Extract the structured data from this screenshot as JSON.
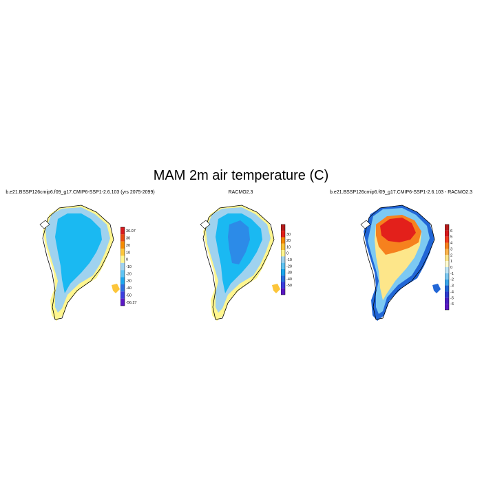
{
  "title": "MAM 2m air temperature (C)",
  "panels": [
    {
      "title": "b.e21.BSSP126cmip6.f09_g17.CMIP6-SSP1-2.6.103 (yrs 2075-2099)",
      "colorbar": {
        "labels": [
          "36.07",
          "30",
          "20",
          "10",
          "0",
          "-10",
          "-20",
          "-30",
          "-40",
          "-50",
          "-56.27"
        ],
        "colors": [
          "#d7191c",
          "#e84a10",
          "#f68a00",
          "#fcc53a",
          "#fff68f",
          "#9fd2ef",
          "#5fc4f4",
          "#1ba6ee",
          "#2c6fe0",
          "#3b3ee0",
          "#5b18c4"
        ]
      }
    },
    {
      "title": "RACMO2.3",
      "colorbar": {
        "labels": [
          "30",
          "20",
          "10",
          "0",
          "-10",
          "-20",
          "-30",
          "-40",
          "-50"
        ],
        "colors": [
          "#b71c1c",
          "#e3201b",
          "#f68a00",
          "#fcc53a",
          "#fff68f",
          "#9fd2ef",
          "#5fc4f4",
          "#1ba6ee",
          "#2c6fe0",
          "#3b3ee0",
          "#5b18c4"
        ]
      }
    },
    {
      "title": "b.e21.BSSP126cmip6.f09_g17.CMIP6-SSP1-2.6.103 - RACMO2.3",
      "colorbar": {
        "labels": [
          "6",
          "5",
          "4",
          "3",
          "2",
          "1",
          "0",
          "-1",
          "-2",
          "-3",
          "-4",
          "-5",
          "-6"
        ],
        "colors": [
          "#b71c1c",
          "#d7191c",
          "#f03b20",
          "#f6811e",
          "#fdb44b",
          "#fde68a",
          "#fffbd0",
          "#bfe5f7",
          "#7cc9f2",
          "#3aa5ea",
          "#2166d6",
          "#2d3ccf",
          "#4a1fc2",
          "#5b18c4"
        ]
      }
    }
  ],
  "colors": {
    "cold_mid": "#1ab9f2",
    "cold_deep": "#2c8be8",
    "edge": "#9fd2ef",
    "warm_edge": "#fff68f",
    "yellow": "#fcc53a"
  }
}
